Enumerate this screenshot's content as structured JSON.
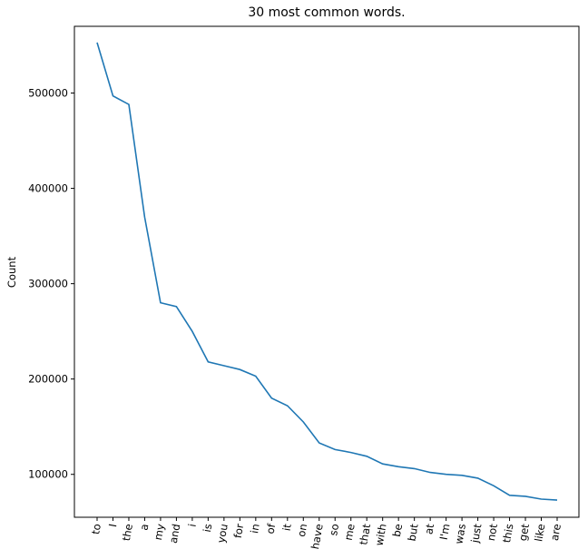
{
  "chart_data": {
    "type": "line",
    "title": "30 most common words.",
    "xlabel": "",
    "ylabel": "Count",
    "ylim": [
      55000,
      570000
    ],
    "yticks": [
      100000,
      200000,
      300000,
      400000,
      500000
    ],
    "ytick_labels": [
      "100000",
      "200000",
      "300000",
      "400000",
      "500000"
    ],
    "grid": false,
    "line_color": "#1f77b4",
    "categories": [
      "to",
      "I",
      "the",
      "a",
      "my",
      "and",
      "i",
      "is",
      "you",
      "for",
      "in",
      "of",
      "it",
      "on",
      "have",
      "so",
      "me",
      "that",
      "with",
      "be",
      "but",
      "at",
      "I'm",
      "was",
      "just",
      "not",
      "this",
      "get",
      "like",
      "are"
    ],
    "series": [
      {
        "values": [
          553000,
          497000,
          488000,
          370000,
          280000,
          276000,
          250000,
          218000,
          214000,
          210000,
          203000,
          180000,
          172000,
          155000,
          133000,
          126000,
          123000,
          119000,
          111000,
          108000,
          106000,
          102000,
          100000,
          99000,
          96000,
          88000,
          78000,
          77000,
          74000,
          73000
        ]
      }
    ]
  }
}
